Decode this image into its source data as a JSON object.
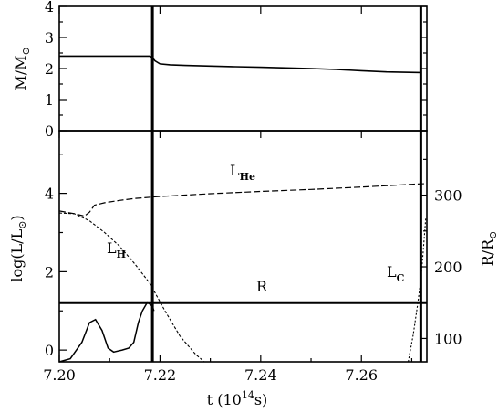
{
  "chart_data": [
    {
      "type": "line",
      "panel": "top",
      "ylabel": "M/M",
      "ylabel_symbol": "⊙",
      "ylim": [
        0,
        4
      ],
      "yticks": [
        "0",
        "1",
        "2",
        "3",
        "4"
      ],
      "xlim": [
        7.2,
        7.273
      ],
      "vlines": [
        7.2185,
        7.2718
      ],
      "series": [
        {
          "x": [
            7.2,
            7.205,
            7.21,
            7.215,
            7.218,
            7.2185,
            7.219,
            7.22,
            7.222,
            7.225,
            7.23,
            7.235,
            7.24,
            7.245,
            7.25,
            7.255,
            7.26,
            7.265,
            7.2718
          ],
          "y": [
            2.4,
            2.4,
            2.4,
            2.4,
            2.4,
            2.35,
            2.25,
            2.15,
            2.12,
            2.1,
            2.08,
            2.06,
            2.04,
            2.02,
            2.0,
            1.97,
            1.93,
            1.89,
            1.87
          ]
        }
      ]
    },
    {
      "type": "line",
      "panel": "bottom",
      "ylabel": "log(L/L",
      "ylabel_close": ")",
      "ylabel_symbol": "⊙",
      "ylim": [
        -0.3,
        5.6
      ],
      "yticks": [
        "0",
        "2",
        "4"
      ],
      "y2label": "R/R",
      "y2label_symbol": "⊙",
      "y2lim": [
        67.4,
        390
      ],
      "y2ticks": [
        "100",
        "200",
        "300"
      ],
      "xlabel": "t  (10",
      "xlabel_exp": "14",
      "xlabel_unit": "s)",
      "xlim": [
        7.2,
        7.273
      ],
      "xticks": [
        "7.20",
        "7.22",
        "7.24",
        "7.26"
      ],
      "vlines": [
        7.2185,
        7.2718
      ],
      "series": [
        {
          "name": "L",
          "name_sub": "He",
          "style": "long-dash",
          "x": [
            7.2,
            7.203,
            7.205,
            7.206,
            7.207,
            7.209,
            7.212,
            7.215,
            7.22,
            7.23,
            7.24,
            7.25,
            7.26,
            7.27,
            7.273
          ],
          "y": [
            3.55,
            3.48,
            3.42,
            3.52,
            3.7,
            3.76,
            3.82,
            3.87,
            3.92,
            3.99,
            4.05,
            4.1,
            4.16,
            4.23,
            4.25
          ]
        },
        {
          "name": "L",
          "name_sub": "H",
          "style": "dash-dot",
          "x": [
            7.2,
            7.203,
            7.206,
            7.209,
            7.212,
            7.215,
            7.218,
            7.221,
            7.224,
            7.227,
            7.2288
          ],
          "y": [
            3.5,
            3.48,
            3.3,
            3.0,
            2.65,
            2.2,
            1.7,
            1.0,
            0.35,
            -0.1,
            -0.3
          ]
        },
        {
          "name": "L",
          "name_sub": "C",
          "style": "dotted",
          "x": [
            7.2693,
            7.2703,
            7.2712,
            7.2718,
            7.2722,
            7.2728
          ],
          "y": [
            -0.3,
            0.4,
            1.2,
            1.8,
            2.4,
            3.4
          ]
        },
        {
          "name": "",
          "style": "solid",
          "x": [
            7.2,
            7.2022,
            7.2045,
            7.206,
            7.2072,
            7.2085,
            7.2097,
            7.2108,
            7.2125,
            7.2138,
            7.2148,
            7.2157,
            7.2165,
            7.2175,
            7.2185,
            7.2188
          ],
          "y": [
            -0.3,
            -0.22,
            0.2,
            0.7,
            0.78,
            0.5,
            0.05,
            -0.05,
            0.0,
            0.05,
            0.2,
            0.7,
            1.0,
            1.22,
            1.12,
            1.0
          ]
        },
        {
          "name": "R",
          "axis": "right",
          "style": "solid-thick",
          "x": [
            7.2,
            7.273
          ],
          "y": [
            150,
            150
          ]
        }
      ]
    }
  ]
}
